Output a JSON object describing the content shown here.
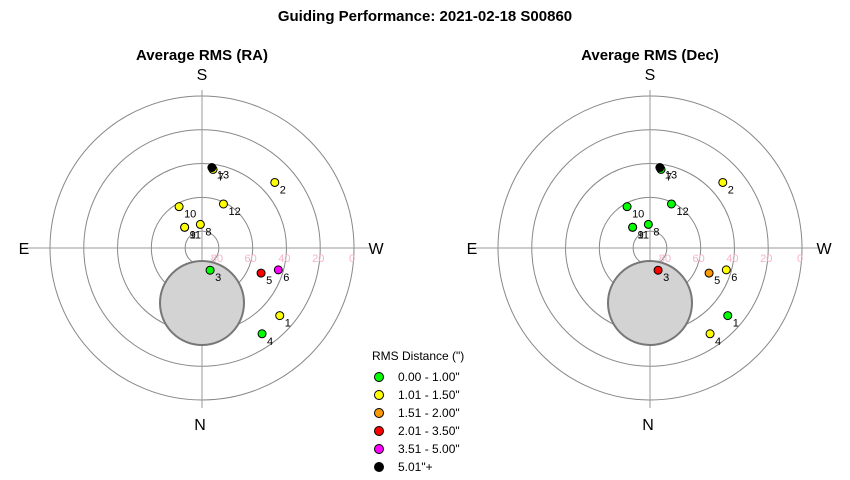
{
  "title": "Guiding Performance: 2021-02-18 S00860",
  "chart_data": [
    {
      "type": "polar-scatter",
      "title": "Average RMS (RA)",
      "directions": {
        "top": "S",
        "bottom": "N",
        "left": "E",
        "right": "W"
      },
      "altitude_ticks": [
        80,
        60,
        40,
        20,
        0
      ],
      "points": [
        {
          "label": "1",
          "az": 229,
          "alt": 29,
          "color": "#ffff00"
        },
        {
          "label": "2",
          "az": 312,
          "alt": 32,
          "color": "#ffff00"
        },
        {
          "label": "3",
          "az": 200,
          "alt": 76,
          "color": "#00ff00"
        },
        {
          "label": "4",
          "az": 215,
          "alt": 28,
          "color": "#00ff00"
        },
        {
          "label": "5",
          "az": 247,
          "alt": 52,
          "color": "#ff0000"
        },
        {
          "label": "6",
          "az": 254,
          "alt": 43,
          "color": "#ff00ff"
        },
        {
          "label": "7",
          "az": 352,
          "alt": 43,
          "color": "#ffff00"
        },
        {
          "label": "8",
          "az": 4,
          "alt": 76,
          "color": "#ffff00"
        },
        {
          "label": "9",
          "az": 40,
          "alt": 74,
          "color": "#ffff00"
        },
        {
          "label": "10",
          "az": 29,
          "alt": 62,
          "color": "#ffff00"
        },
        {
          "label": "11",
          "az": 40,
          "alt": 74,
          "color": "#ffff00"
        },
        {
          "label": "12",
          "az": 334,
          "alt": 61,
          "color": "#ffff00"
        },
        {
          "label": "13",
          "az": 353,
          "alt": 42,
          "color": "#000000"
        }
      ]
    },
    {
      "type": "polar-scatter",
      "title": "Average RMS (Dec)",
      "directions": {
        "top": "S",
        "bottom": "N",
        "left": "E",
        "right": "W"
      },
      "altitude_ticks": [
        80,
        60,
        40,
        20,
        0
      ],
      "points": [
        {
          "label": "1",
          "az": 229,
          "alt": 29,
          "color": "#00ff00"
        },
        {
          "label": "2",
          "az": 312,
          "alt": 32,
          "color": "#ffff00"
        },
        {
          "label": "3",
          "az": 200,
          "alt": 76,
          "color": "#ff0000"
        },
        {
          "label": "4",
          "az": 215,
          "alt": 28,
          "color": "#ffff00"
        },
        {
          "label": "5",
          "az": 247,
          "alt": 52,
          "color": "#ff9900"
        },
        {
          "label": "6",
          "az": 254,
          "alt": 43,
          "color": "#ffff00"
        },
        {
          "label": "7",
          "az": 352,
          "alt": 43,
          "color": "#00ff00"
        },
        {
          "label": "8",
          "az": 4,
          "alt": 76,
          "color": "#00ff00"
        },
        {
          "label": "9",
          "az": 40,
          "alt": 74,
          "color": "#00ff00"
        },
        {
          "label": "10",
          "az": 29,
          "alt": 62,
          "color": "#00ff00"
        },
        {
          "label": "11",
          "az": 40,
          "alt": 74,
          "color": "#00ff00"
        },
        {
          "label": "12",
          "az": 334,
          "alt": 61,
          "color": "#00ff00"
        },
        {
          "label": "13",
          "az": 353,
          "alt": 42,
          "color": "#000000"
        }
      ]
    }
  ],
  "legend": {
    "title": "RMS Distance (\")",
    "placement": "bottom-center",
    "items": [
      {
        "label": "0.00 - 1.00\"",
        "color": "#00ff00"
      },
      {
        "label": "1.01 - 1.50\"",
        "color": "#ffff00"
      },
      {
        "label": "1.51 - 2.00\"",
        "color": "#ff9900"
      },
      {
        "label": "2.01 - 3.50\"",
        "color": "#ff0000"
      },
      {
        "label": "3.51 - 5.00\"",
        "color": "#ff00ff"
      },
      {
        "label": "5.01\"+",
        "color": "#000000"
      }
    ]
  }
}
